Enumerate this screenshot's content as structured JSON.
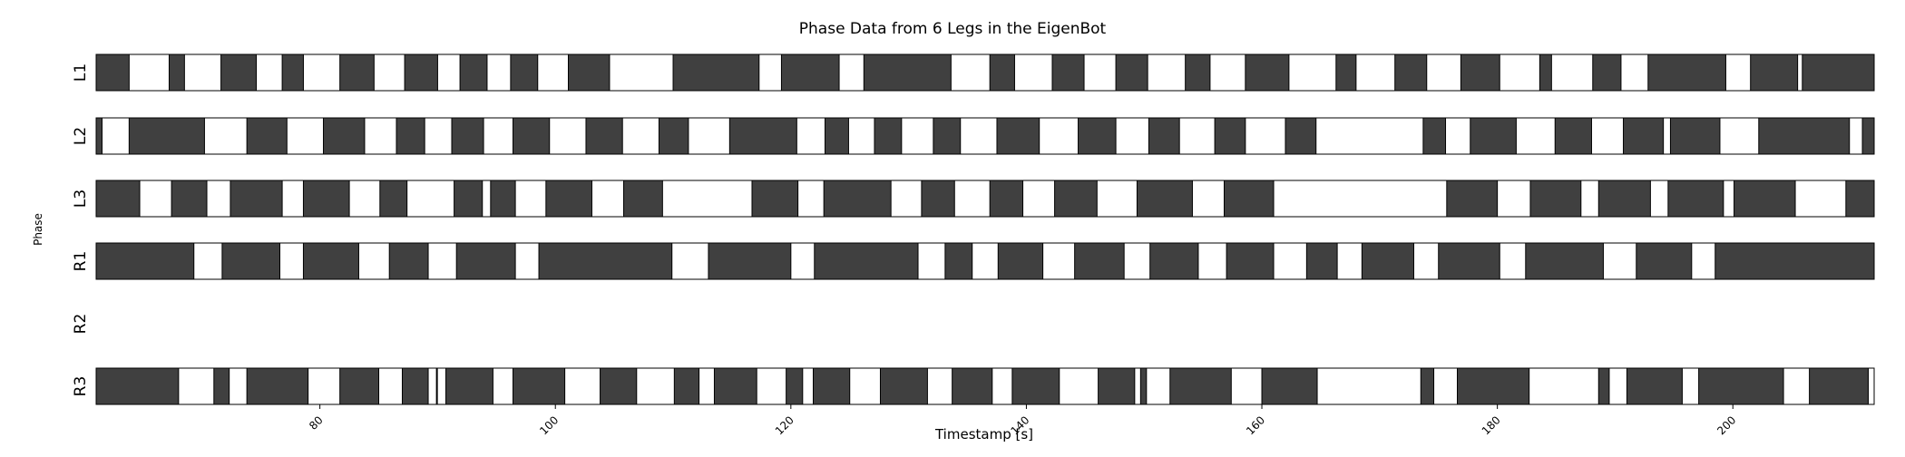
{
  "chart_data": {
    "type": "gantt",
    "title": "Phase Data from 6 Legs in the EigenBot",
    "xlabel": "Timestamp [s]",
    "ylabel": "Phase",
    "xlim": [
      61,
      212
    ],
    "xticks": [
      80,
      100,
      120,
      140,
      160,
      180,
      200
    ],
    "colors": {
      "stance": "#404040",
      "swing": "#ffffff",
      "edge": "#000000"
    },
    "rows": [
      {
        "name": "L1",
        "stance": [
          [
            61.0,
            63.8
          ],
          [
            67.2,
            68.5
          ],
          [
            71.6,
            74.6
          ],
          [
            76.8,
            78.6
          ],
          [
            81.7,
            84.6
          ],
          [
            87.2,
            90.0
          ],
          [
            91.9,
            94.2
          ],
          [
            96.2,
            98.5
          ],
          [
            101.1,
            104.6
          ],
          [
            110.0,
            117.3
          ],
          [
            119.2,
            124.1
          ],
          [
            126.2,
            133.6
          ],
          [
            136.9,
            139.0
          ],
          [
            142.2,
            144.9
          ],
          [
            147.6,
            150.3
          ],
          [
            153.5,
            155.6
          ],
          [
            158.6,
            162.3
          ],
          [
            166.3,
            168.0
          ],
          [
            171.3,
            174.0
          ],
          [
            176.9,
            180.2
          ],
          [
            183.6,
            184.6
          ],
          [
            188.1,
            190.5
          ],
          [
            192.8,
            199.4
          ],
          [
            201.5,
            205.5
          ],
          [
            205.9,
            212.0
          ]
        ]
      },
      {
        "name": "L2",
        "stance": [
          [
            61.0,
            61.5
          ],
          [
            63.8,
            70.2
          ],
          [
            73.8,
            77.2
          ],
          [
            80.3,
            83.8
          ],
          [
            86.5,
            88.9
          ],
          [
            91.2,
            93.9
          ],
          [
            96.4,
            99.5
          ],
          [
            102.6,
            105.7
          ],
          [
            108.8,
            111.3
          ],
          [
            114.8,
            120.5
          ],
          [
            122.9,
            124.9
          ],
          [
            127.1,
            129.4
          ],
          [
            132.1,
            134.4
          ],
          [
            137.5,
            141.1
          ],
          [
            144.4,
            147.6
          ],
          [
            150.4,
            153.0
          ],
          [
            156.0,
            158.6
          ],
          [
            162.0,
            164.6
          ],
          [
            173.7,
            175.6
          ],
          [
            177.7,
            181.6
          ],
          [
            184.9,
            188.0
          ],
          [
            190.7,
            194.1
          ],
          [
            194.7,
            198.9
          ],
          [
            202.2,
            209.9
          ],
          [
            211.0,
            212.0
          ]
        ]
      },
      {
        "name": "L3",
        "stance": [
          [
            61.0,
            64.7
          ],
          [
            67.4,
            70.4
          ],
          [
            72.4,
            76.8
          ],
          [
            78.6,
            82.5
          ],
          [
            85.1,
            87.4
          ],
          [
            91.4,
            93.8
          ],
          [
            94.5,
            96.6
          ],
          [
            99.2,
            103.1
          ],
          [
            105.8,
            109.1
          ],
          [
            116.7,
            120.6
          ],
          [
            122.8,
            128.5
          ],
          [
            131.1,
            133.9
          ],
          [
            136.9,
            139.7
          ],
          [
            142.4,
            146.0
          ],
          [
            149.4,
            154.1
          ],
          [
            156.8,
            161.0
          ],
          [
            175.7,
            180.0
          ],
          [
            182.8,
            187.1
          ],
          [
            188.6,
            193.0
          ],
          [
            194.5,
            199.2
          ],
          [
            200.1,
            205.3
          ],
          [
            209.6,
            212.0
          ]
        ]
      },
      {
        "name": "R1",
        "stance": [
          [
            61.0,
            69.3
          ],
          [
            71.7,
            76.6
          ],
          [
            78.6,
            83.3
          ],
          [
            85.9,
            89.2
          ],
          [
            91.6,
            96.6
          ],
          [
            98.6,
            109.9
          ],
          [
            113.0,
            120.0
          ],
          [
            122.0,
            130.8
          ],
          [
            133.1,
            135.4
          ],
          [
            137.6,
            141.4
          ],
          [
            144.1,
            148.3
          ],
          [
            150.5,
            154.6
          ],
          [
            157.0,
            161.0
          ],
          [
            163.8,
            166.4
          ],
          [
            168.5,
            172.9
          ],
          [
            175.0,
            180.2
          ],
          [
            182.4,
            189.0
          ],
          [
            191.8,
            196.5
          ],
          [
            198.5,
            212.0
          ]
        ]
      },
      {
        "name": "R2",
        "stance": []
      },
      {
        "name": "R3",
        "stance": [
          [
            61.0,
            68.0
          ],
          [
            71.0,
            72.3
          ],
          [
            73.8,
            79.0
          ],
          [
            81.7,
            85.0
          ],
          [
            87.0,
            89.2
          ],
          [
            89.9,
            89.9
          ],
          [
            90.7,
            94.7
          ],
          [
            96.4,
            100.8
          ],
          [
            103.8,
            106.9
          ],
          [
            110.1,
            112.2
          ],
          [
            113.5,
            117.1
          ],
          [
            119.6,
            121.0
          ],
          [
            121.9,
            125.0
          ],
          [
            127.6,
            131.6
          ],
          [
            133.7,
            137.1
          ],
          [
            138.8,
            142.8
          ],
          [
            146.1,
            149.2
          ],
          [
            149.7,
            150.2
          ],
          [
            152.2,
            157.4
          ],
          [
            160.0,
            164.7
          ],
          [
            173.5,
            174.6
          ],
          [
            176.6,
            182.7
          ],
          [
            188.6,
            189.5
          ],
          [
            191.0,
            195.7
          ],
          [
            197.1,
            204.3
          ],
          [
            206.5,
            211.5
          ]
        ]
      }
    ]
  }
}
